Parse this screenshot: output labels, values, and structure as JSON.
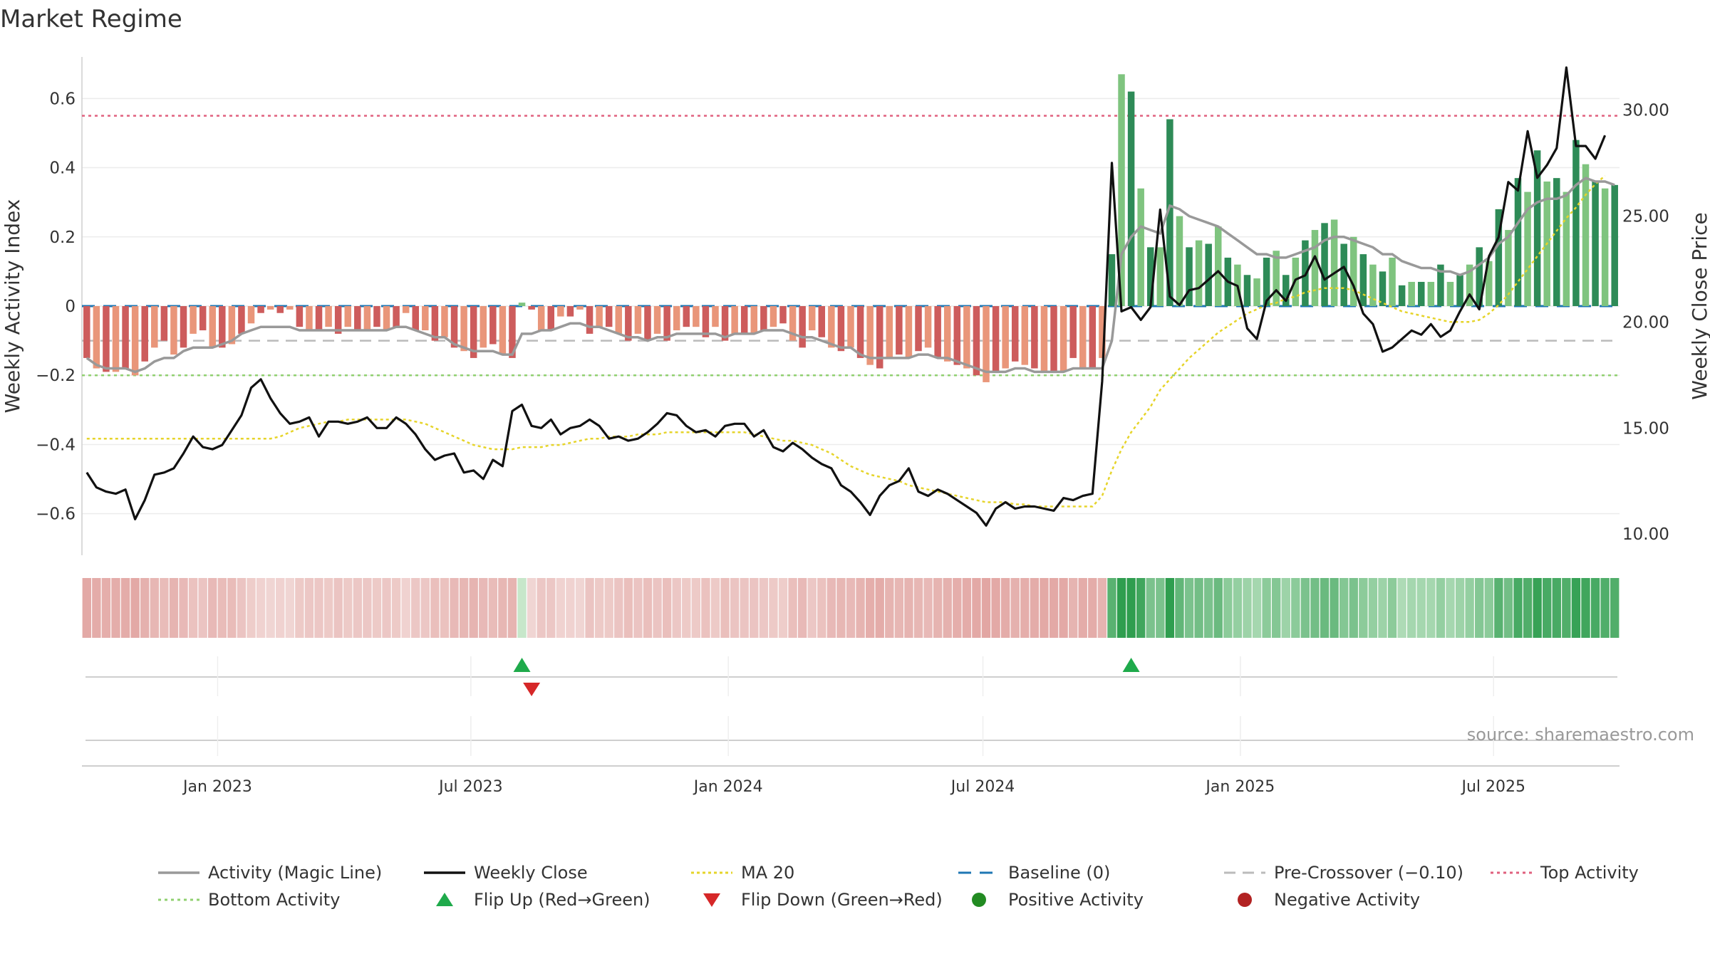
{
  "title": "Market Regime",
  "source": "source: sharemaestro.com",
  "colors": {
    "positive_dark": "#2e8b57",
    "positive_light": "#7fc47f",
    "negative_dark": "#cd5c5c",
    "negative_light": "#e9967a",
    "magic_line": "#999999",
    "weekly_close": "#111111",
    "ma20": "#e6d42a",
    "baseline": "#1f77b4",
    "pre_crossover": "#bbbbbb",
    "top_activity": "#e0607e",
    "bottom_activity": "#90d070",
    "flip_up": "#1faa4b",
    "flip_down": "#d62728"
  },
  "chart_data": {
    "type": "bar",
    "title": "Market Regime",
    "x_range": [
      "2022-09-26",
      "2025-09-29"
    ],
    "xticks": [
      {
        "date": "2023-01-01",
        "label": "Jan 2023"
      },
      {
        "date": "2023-07-01",
        "label": "Jul 2023"
      },
      {
        "date": "2024-01-01",
        "label": "Jan 2024"
      },
      {
        "date": "2024-07-01",
        "label": "Jul 2024"
      },
      {
        "date": "2025-01-01",
        "label": "Jan 2025"
      },
      {
        "date": "2025-07-01",
        "label": "Jul 2025"
      }
    ],
    "left_axis": {
      "label": "Weekly Activity Index",
      "ylim": [
        -0.72,
        0.72
      ],
      "ticks": [
        "0.6",
        "0.4",
        "0.2",
        "0",
        "−0.2",
        "−0.4",
        "−0.6"
      ]
    },
    "right_axis": {
      "label": "Weekly Close Price",
      "ylim": [
        9,
        32.5
      ],
      "ticks": [
        "30.00",
        "25.00",
        "20.00",
        "15.00",
        "10.00"
      ]
    },
    "reference_lines": {
      "top_activity": 0.55,
      "bottom_activity": -0.2,
      "pre_crossover": -0.1,
      "baseline": 0
    },
    "series": [
      {
        "name": "Weekly Activity Index",
        "values": [
          -0.15,
          -0.18,
          -0.19,
          -0.19,
          -0.18,
          -0.2,
          -0.16,
          -0.12,
          -0.1,
          -0.14,
          -0.12,
          -0.08,
          -0.07,
          -0.12,
          -0.12,
          -0.11,
          -0.08,
          -0.05,
          -0.02,
          -0.01,
          -0.02,
          -0.01,
          -0.06,
          -0.07,
          -0.07,
          -0.06,
          -0.08,
          -0.06,
          -0.07,
          -0.07,
          -0.06,
          -0.07,
          -0.06,
          -0.02,
          -0.07,
          -0.07,
          -0.1,
          -0.09,
          -0.12,
          -0.13,
          -0.15,
          -0.12,
          -0.11,
          -0.14,
          -0.15,
          0.01,
          -0.01,
          -0.07,
          -0.07,
          -0.03,
          -0.03,
          -0.01,
          -0.08,
          -0.06,
          -0.06,
          -0.08,
          -0.1,
          -0.08,
          -0.1,
          -0.08,
          -0.1,
          -0.07,
          -0.06,
          -0.06,
          -0.09,
          -0.06,
          -0.1,
          -0.08,
          -0.08,
          -0.08,
          -0.07,
          -0.06,
          -0.05,
          -0.1,
          -0.12,
          -0.07,
          -0.09,
          -0.12,
          -0.13,
          -0.12,
          -0.15,
          -0.17,
          -0.18,
          -0.15,
          -0.14,
          -0.15,
          -0.13,
          -0.12,
          -0.15,
          -0.16,
          -0.17,
          -0.18,
          -0.2,
          -0.22,
          -0.19,
          -0.18,
          -0.16,
          -0.17,
          -0.18,
          -0.19,
          -0.19,
          -0.19,
          -0.15,
          -0.18,
          -0.18,
          -0.15,
          0.15,
          0.67,
          0.62,
          0.34,
          0.17,
          0.17,
          0.54,
          0.26,
          0.17,
          0.19,
          0.18,
          0.23,
          0.14,
          0.12,
          0.09,
          0.08,
          0.14,
          0.16,
          0.09,
          0.14,
          0.19,
          0.22,
          0.24,
          0.25,
          0.18,
          0.2,
          0.15,
          0.12,
          0.1,
          0.14,
          0.06,
          0.07,
          0.07,
          0.07,
          0.12,
          0.07,
          0.09,
          0.12,
          0.17,
          0.13,
          0.28,
          0.22,
          0.37,
          0.33,
          0.45,
          0.36,
          0.37,
          0.33,
          0.48,
          0.41,
          0.36,
          0.34,
          0.35
        ]
      },
      {
        "name": "Activity (Magic Line)",
        "values": [
          -0.15,
          -0.17,
          -0.18,
          -0.18,
          -0.18,
          -0.19,
          -0.18,
          -0.16,
          -0.15,
          -0.15,
          -0.13,
          -0.12,
          -0.12,
          -0.12,
          -0.11,
          -0.1,
          -0.08,
          -0.07,
          -0.06,
          -0.06,
          -0.06,
          -0.06,
          -0.07,
          -0.07,
          -0.07,
          -0.07,
          -0.07,
          -0.07,
          -0.07,
          -0.07,
          -0.07,
          -0.07,
          -0.06,
          -0.06,
          -0.07,
          -0.08,
          -0.09,
          -0.09,
          -0.11,
          -0.12,
          -0.13,
          -0.13,
          -0.13,
          -0.14,
          -0.14,
          -0.08,
          -0.08,
          -0.07,
          -0.07,
          -0.06,
          -0.05,
          -0.05,
          -0.06,
          -0.06,
          -0.07,
          -0.08,
          -0.09,
          -0.09,
          -0.1,
          -0.09,
          -0.09,
          -0.08,
          -0.08,
          -0.08,
          -0.08,
          -0.08,
          -0.09,
          -0.08,
          -0.08,
          -0.08,
          -0.07,
          -0.07,
          -0.07,
          -0.08,
          -0.09,
          -0.09,
          -0.1,
          -0.11,
          -0.12,
          -0.12,
          -0.14,
          -0.15,
          -0.15,
          -0.15,
          -0.15,
          -0.15,
          -0.14,
          -0.14,
          -0.15,
          -0.15,
          -0.16,
          -0.17,
          -0.18,
          -0.19,
          -0.19,
          -0.19,
          -0.18,
          -0.18,
          -0.19,
          -0.19,
          -0.19,
          -0.19,
          -0.18,
          -0.18,
          -0.18,
          -0.18,
          -0.1,
          0.15,
          0.2,
          0.23,
          0.22,
          0.21,
          0.29,
          0.28,
          0.26,
          0.25,
          0.24,
          0.23,
          0.21,
          0.19,
          0.17,
          0.15,
          0.15,
          0.14,
          0.14,
          0.15,
          0.16,
          0.17,
          0.19,
          0.2,
          0.2,
          0.19,
          0.18,
          0.17,
          0.15,
          0.15,
          0.13,
          0.12,
          0.11,
          0.11,
          0.1,
          0.1,
          0.09,
          0.1,
          0.12,
          0.14,
          0.18,
          0.2,
          0.24,
          0.28,
          0.3,
          0.31,
          0.31,
          0.32,
          0.35,
          0.37,
          0.36,
          0.36,
          0.35
        ]
      },
      {
        "name": "Weekly Close",
        "values": [
          12.9,
          12.2,
          12.0,
          11.9,
          12.1,
          10.7,
          11.6,
          12.8,
          12.9,
          13.1,
          13.8,
          14.6,
          14.1,
          14.0,
          14.2,
          14.9,
          15.6,
          16.9,
          17.3,
          16.4,
          15.7,
          15.2,
          15.3,
          15.5,
          14.6,
          15.3,
          15.3,
          15.2,
          15.3,
          15.5,
          15.0,
          15.0,
          15.5,
          15.2,
          14.7,
          14.0,
          13.5,
          13.7,
          13.8,
          12.9,
          13.0,
          12.6,
          13.5,
          13.2,
          15.8,
          16.1,
          15.1,
          15.0,
          15.4,
          14.7,
          15.0,
          15.1,
          15.4,
          15.1,
          14.5,
          14.6,
          14.4,
          14.5,
          14.8,
          15.2,
          15.7,
          15.6,
          15.1,
          14.8,
          14.9,
          14.6,
          15.1,
          15.2,
          15.2,
          14.6,
          14.9,
          14.1,
          13.9,
          14.3,
          14.0,
          13.6,
          13.3,
          13.1,
          12.3,
          12.0,
          11.5,
          10.9,
          11.8,
          12.3,
          12.5,
          13.1,
          12.0,
          11.8,
          12.1,
          11.9,
          11.6,
          11.3,
          11.0,
          10.4,
          11.2,
          11.5,
          11.2,
          11.3,
          11.3,
          11.2,
          11.1,
          11.7,
          11.6,
          11.8,
          11.9,
          17.2,
          27.5,
          20.5,
          20.7,
          20.1,
          20.7,
          25.3,
          21.2,
          20.8,
          21.5,
          21.6,
          22.0,
          22.4,
          21.9,
          21.7,
          19.7,
          19.2,
          21.0,
          21.5,
          21.0,
          22.0,
          22.2,
          23.1,
          22.0,
          22.3,
          22.6,
          21.7,
          20.4,
          19.9,
          18.6,
          18.8,
          19.2,
          19.6,
          19.4,
          19.9,
          19.3,
          19.6,
          20.5,
          21.3,
          20.6,
          23.1,
          24.0,
          26.6,
          26.2,
          29.0,
          26.8,
          27.4,
          28.2,
          32.0,
          28.3,
          28.3,
          27.7,
          28.8
        ]
      },
      {
        "name": "MA 20",
        "values": [
          14.5,
          14.5,
          14.5,
          14.5,
          14.5,
          14.5,
          14.5,
          14.5,
          14.5,
          14.5,
          14.5,
          14.5,
          14.5,
          14.5,
          14.5,
          14.5,
          14.5,
          14.5,
          14.5,
          14.5,
          14.6,
          14.8,
          15.0,
          15.1,
          15.2,
          15.3,
          15.3,
          15.4,
          15.4,
          15.4,
          15.4,
          15.4,
          15.4,
          15.4,
          15.3,
          15.2,
          15.0,
          14.8,
          14.6,
          14.4,
          14.2,
          14.1,
          14.0,
          14.0,
          14.0,
          14.1,
          14.1,
          14.1,
          14.2,
          14.2,
          14.3,
          14.4,
          14.5,
          14.5,
          14.6,
          14.6,
          14.6,
          14.7,
          14.7,
          14.7,
          14.8,
          14.8,
          14.8,
          14.8,
          14.8,
          14.8,
          14.8,
          14.8,
          14.8,
          14.7,
          14.6,
          14.5,
          14.4,
          14.4,
          14.3,
          14.2,
          14.0,
          13.8,
          13.5,
          13.2,
          13.0,
          12.8,
          12.7,
          12.6,
          12.5,
          12.3,
          12.2,
          12.1,
          12.0,
          11.9,
          11.8,
          11.7,
          11.6,
          11.5,
          11.5,
          11.5,
          11.4,
          11.4,
          11.3,
          11.3,
          11.3,
          11.3,
          11.3,
          11.3,
          11.3,
          11.8,
          13.0,
          14.0,
          14.8,
          15.4,
          16.0,
          16.8,
          17.3,
          17.8,
          18.3,
          18.7,
          19.1,
          19.5,
          19.8,
          20.1,
          20.4,
          20.6,
          20.8,
          20.9,
          21.1,
          21.2,
          21.4,
          21.5,
          21.6,
          21.6,
          21.6,
          21.5,
          21.3,
          21.1,
          20.9,
          20.7,
          20.5,
          20.4,
          20.3,
          20.2,
          20.1,
          20.0,
          20.0,
          20.0,
          20.1,
          20.4,
          20.8,
          21.3,
          21.9,
          22.5,
          23.1,
          23.7,
          24.3,
          24.9,
          25.4,
          26.0,
          26.5,
          26.9
        ]
      }
    ],
    "regime_strip_intensity": [
      0.95,
      0.9,
      0.85,
      0.88,
      0.9,
      0.95,
      0.8,
      0.7,
      0.6,
      0.75,
      0.65,
      0.5,
      0.45,
      0.65,
      0.6,
      0.6,
      0.45,
      0.3,
      0.2,
      0.15,
      0.2,
      0.15,
      0.35,
      0.4,
      0.4,
      0.35,
      0.45,
      0.35,
      0.4,
      0.4,
      0.35,
      0.4,
      0.35,
      0.2,
      0.4,
      0.4,
      0.55,
      0.5,
      0.65,
      0.7,
      0.75,
      0.65,
      0.6,
      0.7,
      0.75,
      0.1,
      0.15,
      0.4,
      0.4,
      0.2,
      0.2,
      0.15,
      0.45,
      0.35,
      0.35,
      0.45,
      0.55,
      0.45,
      0.55,
      0.45,
      0.55,
      0.4,
      0.35,
      0.35,
      0.5,
      0.35,
      0.55,
      0.45,
      0.45,
      0.45,
      0.4,
      0.35,
      0.3,
      0.55,
      0.65,
      0.4,
      0.5,
      0.65,
      0.7,
      0.65,
      0.75,
      0.85,
      0.9,
      0.75,
      0.7,
      0.75,
      0.7,
      0.65,
      0.75,
      0.8,
      0.85,
      0.9,
      0.95,
      1.0,
      0.95,
      0.9,
      0.8,
      0.85,
      0.9,
      0.95,
      0.95,
      0.95,
      0.75,
      0.9,
      0.9,
      0.75,
      0.75,
      1.0,
      1.0,
      0.9,
      0.55,
      0.55,
      1.0,
      0.7,
      0.55,
      0.6,
      0.55,
      0.65,
      0.45,
      0.4,
      0.35,
      0.3,
      0.45,
      0.5,
      0.35,
      0.45,
      0.55,
      0.6,
      0.65,
      0.65,
      0.5,
      0.55,
      0.45,
      0.4,
      0.35,
      0.45,
      0.25,
      0.3,
      0.3,
      0.3,
      0.4,
      0.3,
      0.35,
      0.4,
      0.5,
      0.45,
      0.75,
      0.6,
      0.85,
      0.8,
      0.95,
      0.85,
      0.85,
      0.8,
      0.95,
      0.9,
      0.85,
      0.8,
      0.8
    ],
    "flip_up_weeks": [
      45,
      108
    ],
    "flip_down_weeks": [
      46
    ],
    "legend": [
      {
        "label": "Activity (Magic Line)",
        "style": "line-gray"
      },
      {
        "label": "Weekly Close",
        "style": "line-black"
      },
      {
        "label": "MA 20",
        "style": "dotted-yellow"
      },
      {
        "label": "Baseline (0)",
        "style": "dashed-blue"
      },
      {
        "label": "Pre-Crossover (−0.10)",
        "style": "dashed-gray"
      },
      {
        "label": "Top Activity",
        "style": "dotted-pink"
      },
      {
        "label": "Bottom Activity",
        "style": "dotted-green"
      },
      {
        "label": "Flip Up (Red→Green)",
        "style": "triangle-up"
      },
      {
        "label": "Flip Down (Green→Red)",
        "style": "triangle-down"
      },
      {
        "label": "Positive Activity",
        "style": "dot-green"
      },
      {
        "label": "Negative Activity",
        "style": "dot-red"
      }
    ]
  }
}
